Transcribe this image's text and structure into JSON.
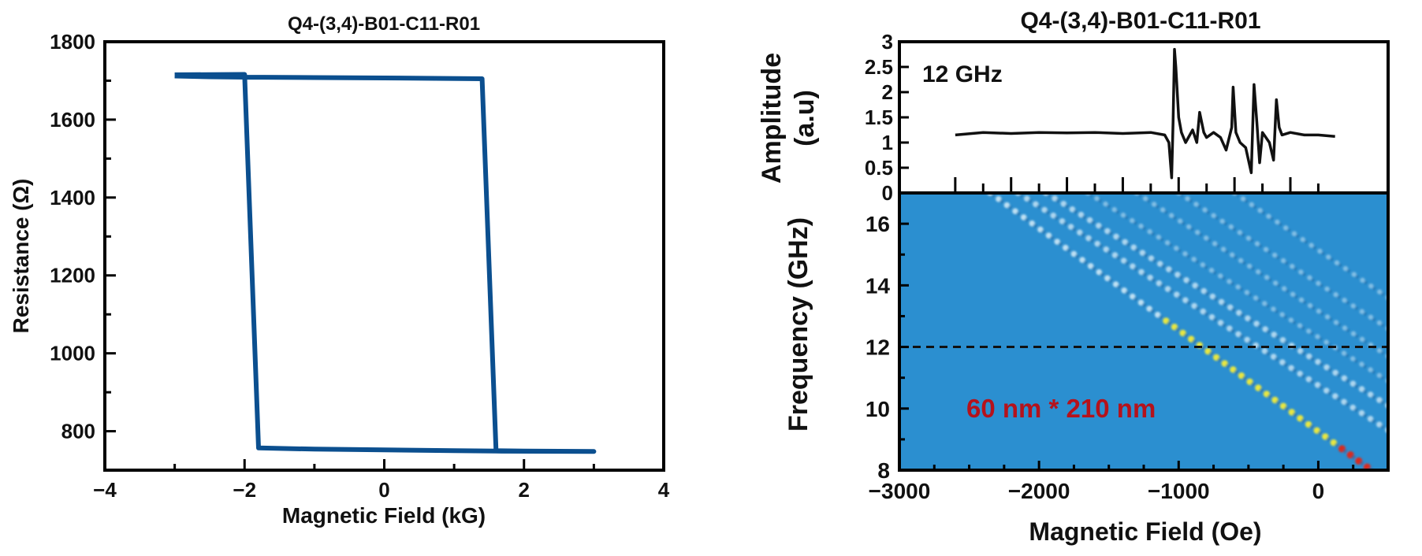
{
  "colors": {
    "hysteresis": "#0b4f8f",
    "amplitude": "#111111",
    "map_background": "#2b8fd0",
    "map_mode": "#d8eef9",
    "map_peak_yellow": "#f2ec3a",
    "map_peak_red": "#d92a1c",
    "dashed_line": "#111111",
    "annotation_red": "#b5121b"
  },
  "chart_data": [
    {
      "type": "line",
      "title": "Q4-(3,4)-B01-C11-R01",
      "xlabel": "Magnetic Field (kG)",
      "ylabel": "Resistance (Ω)",
      "xlim": [
        -4,
        4
      ],
      "ylim": [
        700,
        1800
      ],
      "xticks": [
        -4,
        -2,
        0,
        2,
        4
      ],
      "xtick_labels": [
        "−4",
        "−2",
        "0",
        "2",
        "4"
      ],
      "yticks": [
        800,
        1000,
        1200,
        1400,
        1600,
        1800
      ],
      "ytick_labels": [
        "800",
        "1000",
        "1200",
        "1400",
        "1600",
        "1800"
      ],
      "series": [
        {
          "x": [
            -3.0,
            -2.0,
            -1.8,
            -1.0,
            0.0,
            1.0,
            1.6,
            3.0,
            3.0,
            2.0,
            1.6,
            1.4,
            0.0,
            -1.0,
            -2.0,
            -2.5,
            -3.0
          ],
          "y": [
            1715,
            1716,
            757,
            754,
            752,
            750,
            749,
            748,
            748,
            749,
            750,
            1705,
            1707,
            1708,
            1709,
            1710,
            1712
          ]
        }
      ],
      "grid": false
    },
    {
      "type": "line",
      "title": "Q4-(3,4)-B01-C11-R01",
      "ylabel": "Amplitude (a.u)",
      "ylabel_lines": [
        "Amplitude",
        "(a.u)"
      ],
      "annotation": "12 GHz",
      "xlim": [
        -3000,
        500
      ],
      "ylim": [
        0,
        3
      ],
      "yticks": [
        0,
        0.5,
        1,
        1.5,
        2,
        2.5,
        3
      ],
      "ytick_labels": [
        "0",
        "0.5",
        "1",
        "1.5",
        "2",
        "2.5",
        "3"
      ],
      "series": [
        {
          "x": [
            -2600,
            -2400,
            -2200,
            -2000,
            -1800,
            -1600,
            -1400,
            -1200,
            -1100,
            -1070,
            -1050,
            -1040,
            -1030,
            -1020,
            -1000,
            -980,
            -950,
            -900,
            -870,
            -850,
            -820,
            -800,
            -750,
            -700,
            -660,
            -620,
            -610,
            -590,
            -560,
            -520,
            -480,
            -460,
            -440,
            -420,
            -400,
            -350,
            -320,
            -300,
            -280,
            -260,
            -200,
            -100,
            0,
            120
          ],
          "y": [
            1.15,
            1.2,
            1.18,
            1.2,
            1.19,
            1.2,
            1.18,
            1.2,
            1.15,
            1.0,
            0.3,
            1.4,
            2.85,
            2.5,
            1.5,
            1.2,
            1.0,
            1.25,
            1.0,
            1.6,
            1.2,
            1.1,
            1.2,
            1.1,
            0.85,
            1.3,
            2.1,
            1.2,
            1.0,
            0.9,
            0.4,
            2.15,
            1.4,
            0.6,
            1.2,
            1.0,
            0.65,
            1.85,
            1.3,
            1.15,
            1.2,
            1.15,
            1.15,
            1.12
          ]
        }
      ],
      "grid": false
    },
    {
      "type": "heatmap",
      "xlabel": "Magnetic Field (Oe)",
      "ylabel": "Frequency (GHz)",
      "annotation": "60 nm * 210 nm",
      "xlim": [
        -3000,
        500
      ],
      "ylim": [
        8,
        17
      ],
      "xticks": [
        -3000,
        -2000,
        -1000,
        0
      ],
      "xtick_labels": [
        "−3000",
        "−2000",
        "−1000",
        "0"
      ],
      "yticks": [
        8,
        10,
        12,
        14,
        16
      ],
      "ytick_labels": [
        "8",
        "10",
        "12",
        "14",
        "16"
      ],
      "reference_line": {
        "frequency": 12,
        "style": "dashed"
      },
      "modes": [
        {
          "from": [
            -2350,
            17
          ],
          "to": [
            350,
            8.1
          ],
          "strength": "strong"
        },
        {
          "from": [
            -2150,
            17
          ],
          "to": [
            500,
            9.3
          ],
          "strength": "medium"
        },
        {
          "from": [
            -1950,
            17
          ],
          "to": [
            500,
            10.1
          ],
          "strength": "medium"
        },
        {
          "from": [
            -1650,
            17
          ],
          "to": [
            500,
            10.9
          ],
          "strength": "weak"
        },
        {
          "from": [
            -1300,
            17
          ],
          "to": [
            500,
            11.7
          ],
          "strength": "weak"
        },
        {
          "from": [
            -1000,
            17
          ],
          "to": [
            500,
            12.6
          ],
          "strength": "weak"
        },
        {
          "from": [
            -600,
            17
          ],
          "to": [
            500,
            13.6
          ],
          "strength": "weak"
        }
      ]
    }
  ]
}
